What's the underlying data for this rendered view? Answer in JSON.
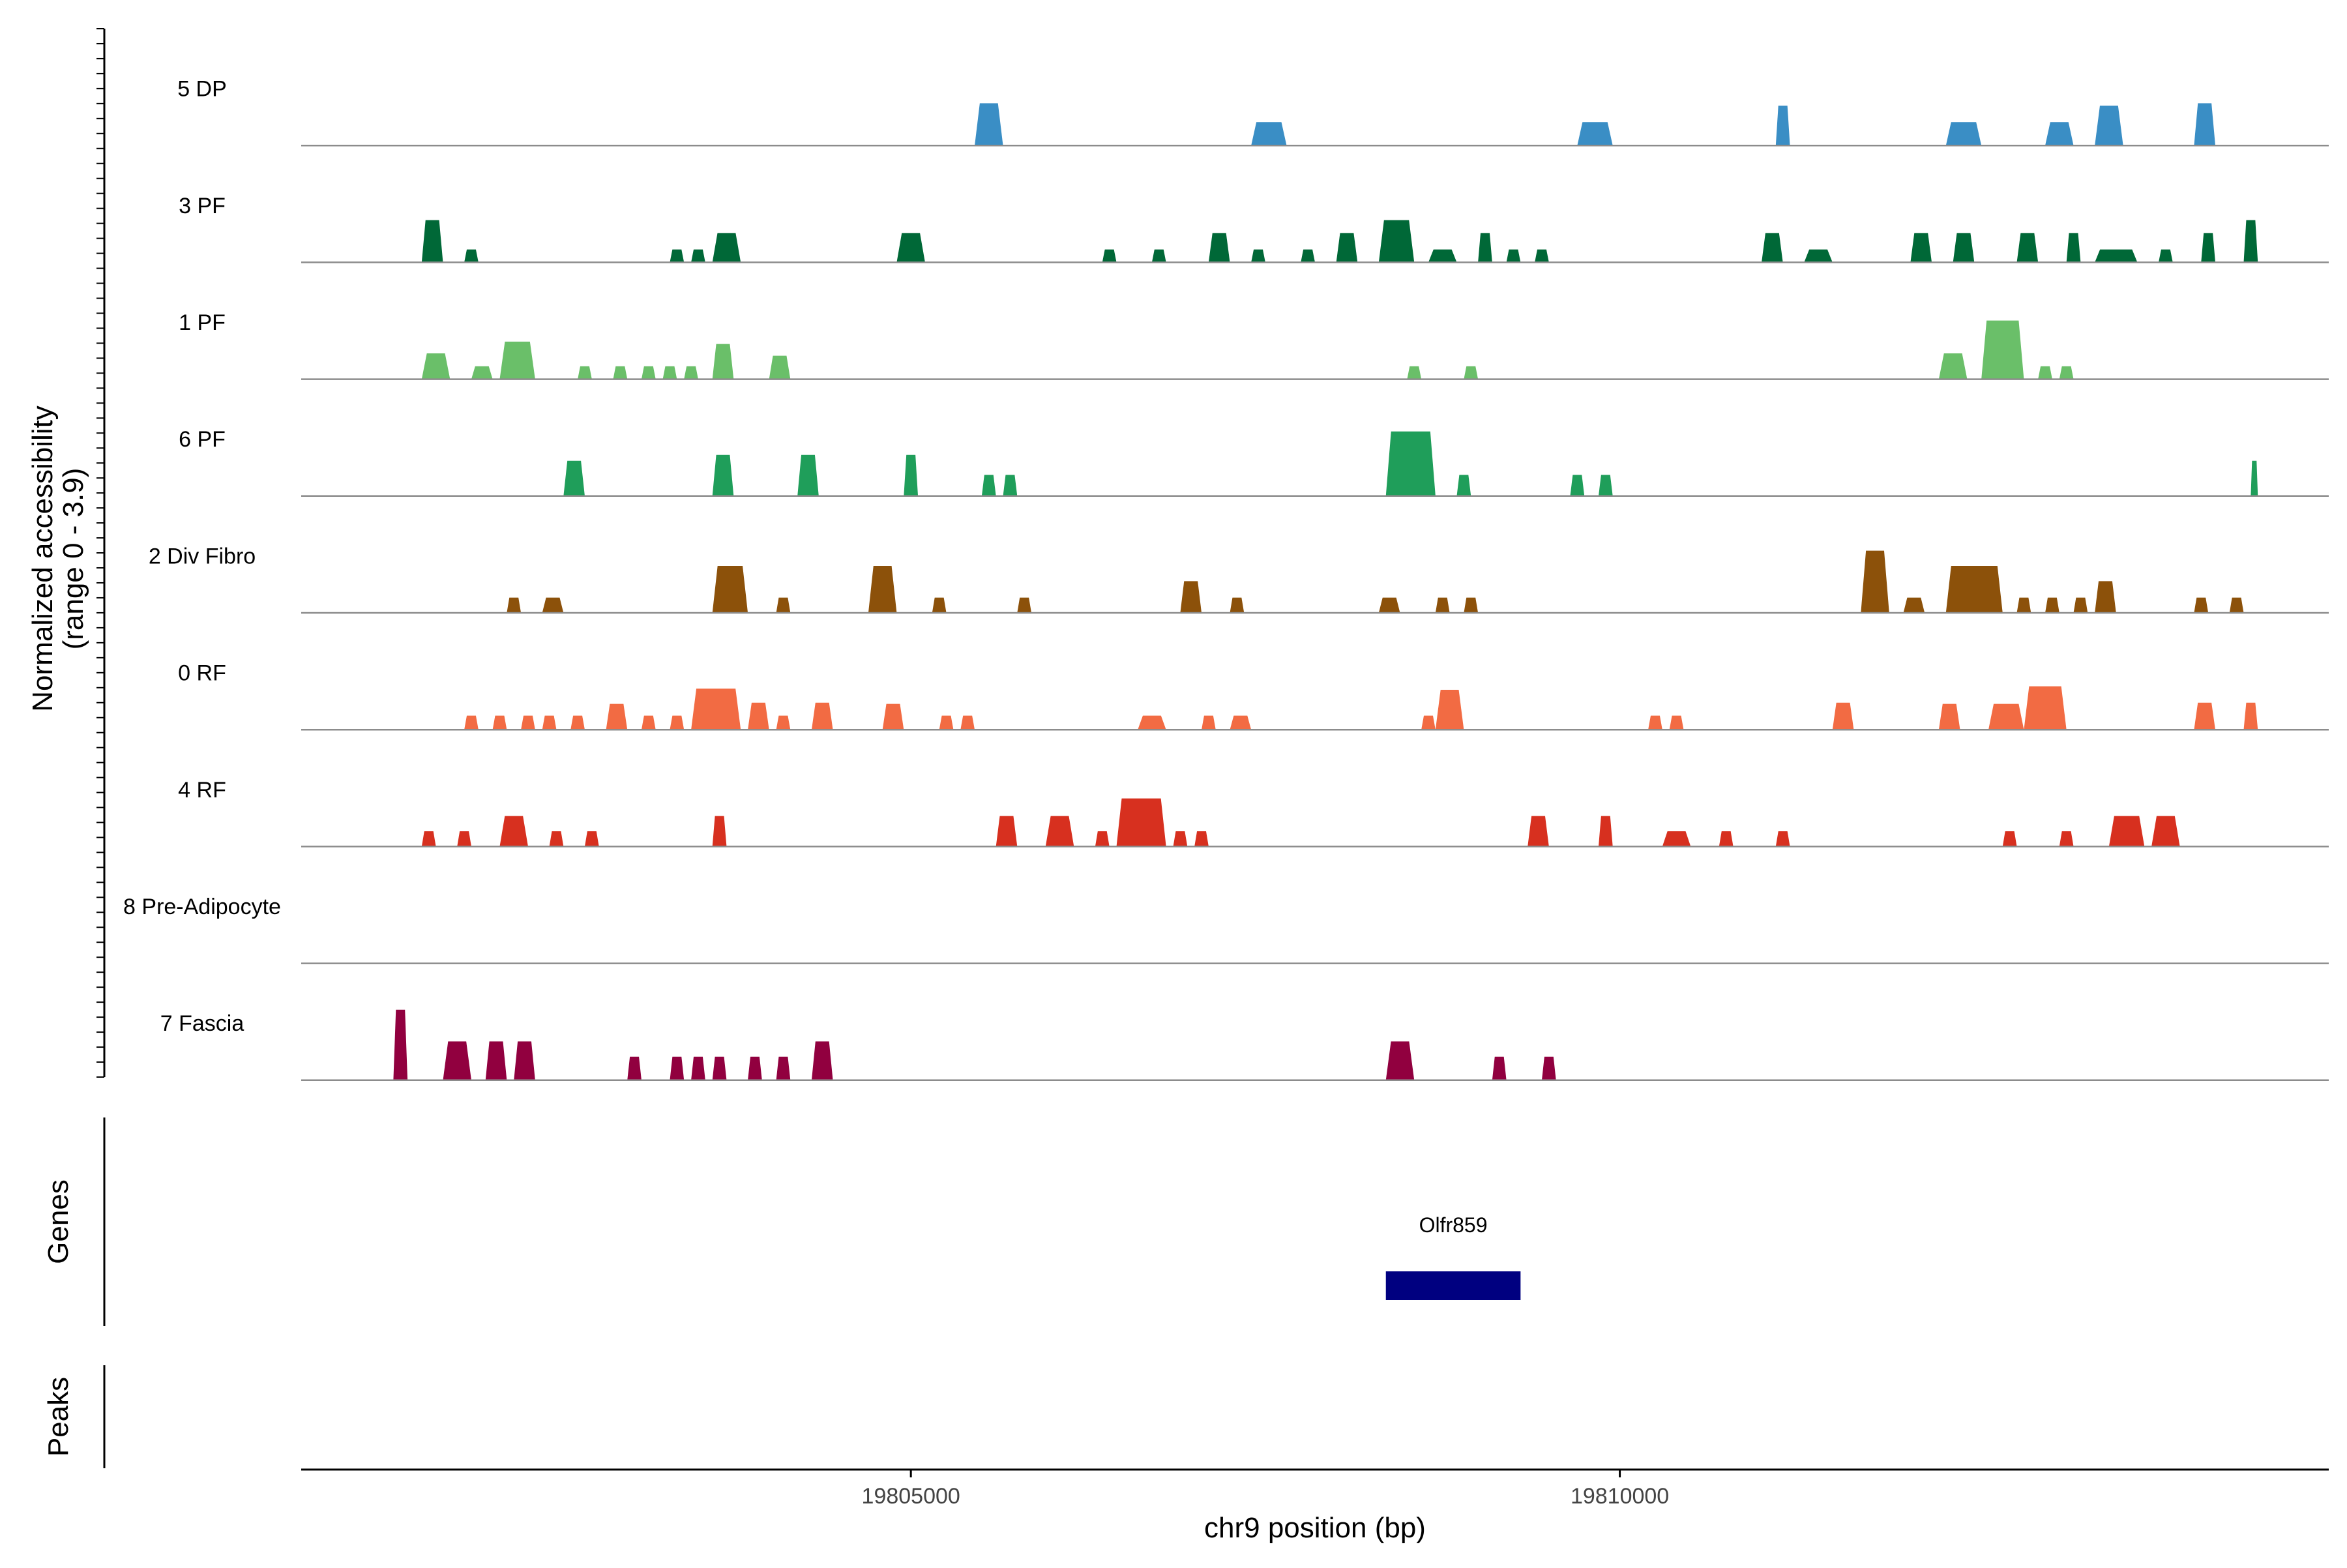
{
  "chart_data": {
    "type": "area",
    "title": "",
    "y_axis_label_line1": "Normalized accessibility",
    "y_axis_label_line2": "(range 0 - 3.9)",
    "ylim": [
      0,
      3.9
    ],
    "x_axis_label": "chr9 position (bp)",
    "xlim": [
      19800700,
      19815000
    ],
    "x_ticks": [
      {
        "value": 19805000,
        "label": "19805000"
      },
      {
        "value": 19810000,
        "label": "19810000"
      }
    ],
    "tracks": [
      {
        "name": "5 DP",
        "color": "#3A8EC5",
        "peaks": [
          [
            19805450,
            19805650,
            3.6
          ],
          [
            19807400,
            19807650,
            2.0
          ],
          [
            19809700,
            19809950,
            2.0
          ],
          [
            19811100,
            19811200,
            3.4
          ],
          [
            19812300,
            19812550,
            2.0
          ],
          [
            19813000,
            19813200,
            2.0
          ],
          [
            19813350,
            19813550,
            3.4
          ],
          [
            19814050,
            19814200,
            3.6
          ]
        ]
      },
      {
        "name": "3 PF",
        "color": "#006837",
        "peaks": [
          [
            19801550,
            19801700,
            3.6
          ],
          [
            19801850,
            19801950,
            1.1
          ],
          [
            19803300,
            19803400,
            1.1
          ],
          [
            19803450,
            19803550,
            1.1
          ],
          [
            19803600,
            19803800,
            2.5
          ],
          [
            19804900,
            19805100,
            2.5
          ],
          [
            19806350,
            19806450,
            1.1
          ],
          [
            19806700,
            19806800,
            1.1
          ],
          [
            19807100,
            19807250,
            2.5
          ],
          [
            19807400,
            19807500,
            1.1
          ],
          [
            19807750,
            19807850,
            1.1
          ],
          [
            19808000,
            19808150,
            2.5
          ],
          [
            19808300,
            19808550,
            3.6
          ],
          [
            19808650,
            19808850,
            1.1
          ],
          [
            19809000,
            19809100,
            2.5
          ],
          [
            19809200,
            19809300,
            1.1
          ],
          [
            19809400,
            19809500,
            1.1
          ],
          [
            19811000,
            19811150,
            2.5
          ],
          [
            19811300,
            19811500,
            1.1
          ],
          [
            19812050,
            19812200,
            2.5
          ],
          [
            19812350,
            19812500,
            2.5
          ],
          [
            19812800,
            19812950,
            2.5
          ],
          [
            19813150,
            19813250,
            2.5
          ],
          [
            19813350,
            19813650,
            1.1
          ],
          [
            19813800,
            19813900,
            1.1
          ],
          [
            19814100,
            19814200,
            2.5
          ],
          [
            19814400,
            19814500,
            3.6
          ]
        ]
      },
      {
        "name": "1 PF",
        "color": "#6ABF69",
        "peaks": [
          [
            19801550,
            19801750,
            2.2
          ],
          [
            19801900,
            19802050,
            1.1
          ],
          [
            19802100,
            19802350,
            3.2
          ],
          [
            19802650,
            19802750,
            1.1
          ],
          [
            19802900,
            19803000,
            1.1
          ],
          [
            19803100,
            19803200,
            1.1
          ],
          [
            19803250,
            19803350,
            1.1
          ],
          [
            19803400,
            19803500,
            1.1
          ],
          [
            19803600,
            19803750,
            3.0
          ],
          [
            19804000,
            19804150,
            2.0
          ],
          [
            19808500,
            19808600,
            1.1
          ],
          [
            19808900,
            19809000,
            1.1
          ],
          [
            19812250,
            19812450,
            2.2
          ],
          [
            19812550,
            19812850,
            5.0
          ],
          [
            19812950,
            19813050,
            1.1
          ],
          [
            19813100,
            19813200,
            1.1
          ]
        ]
      },
      {
        "name": "6 PF",
        "color": "#1F9E5A",
        "peaks": [
          [
            19802550,
            19802700,
            3.0
          ],
          [
            19803600,
            19803750,
            3.5
          ],
          [
            19804200,
            19804350,
            3.5
          ],
          [
            19804950,
            19805050,
            3.5
          ],
          [
            19805500,
            19805600,
            1.8
          ],
          [
            19805650,
            19805750,
            1.8
          ],
          [
            19808350,
            19808700,
            5.5
          ],
          [
            19808850,
            19808950,
            1.8
          ],
          [
            19809650,
            19809750,
            1.8
          ],
          [
            19809850,
            19809950,
            1.8
          ],
          [
            19814450,
            19814500,
            3.0
          ]
        ]
      },
      {
        "name": "2 Div Fibro",
        "color": "#8C510A",
        "peaks": [
          [
            19802150,
            19802250,
            1.3
          ],
          [
            19802400,
            19802550,
            1.3
          ],
          [
            19803600,
            19803850,
            4.0
          ],
          [
            19804050,
            19804150,
            1.3
          ],
          [
            19804700,
            19804900,
            4.0
          ],
          [
            19805150,
            19805250,
            1.3
          ],
          [
            19805750,
            19805850,
            1.3
          ],
          [
            19806900,
            19807050,
            2.7
          ],
          [
            19807250,
            19807350,
            1.3
          ],
          [
            19808300,
            19808450,
            1.3
          ],
          [
            19808700,
            19808800,
            1.3
          ],
          [
            19808900,
            19809000,
            1.3
          ],
          [
            19811700,
            19811900,
            5.3
          ],
          [
            19812000,
            19812150,
            1.3
          ],
          [
            19812300,
            19812700,
            4.0
          ],
          [
            19812800,
            19812900,
            1.3
          ],
          [
            19813000,
            19813100,
            1.3
          ],
          [
            19813200,
            19813300,
            1.3
          ],
          [
            19813350,
            19813500,
            2.7
          ],
          [
            19814050,
            19814150,
            1.3
          ],
          [
            19814300,
            19814400,
            1.3
          ]
        ]
      },
      {
        "name": "0 RF",
        "color": "#F26B43",
        "peaks": [
          [
            19801850,
            19801950,
            1.2
          ],
          [
            19802050,
            19802150,
            1.2
          ],
          [
            19802250,
            19802350,
            1.2
          ],
          [
            19802400,
            19802500,
            1.2
          ],
          [
            19802600,
            19802700,
            1.2
          ],
          [
            19802850,
            19803000,
            2.2
          ],
          [
            19803100,
            19803200,
            1.2
          ],
          [
            19803300,
            19803400,
            1.2
          ],
          [
            19803450,
            19803800,
            3.5
          ],
          [
            19803850,
            19804000,
            2.3
          ],
          [
            19804050,
            19804150,
            1.2
          ],
          [
            19804300,
            19804450,
            2.3
          ],
          [
            19804800,
            19804950,
            2.2
          ],
          [
            19805200,
            19805300,
            1.2
          ],
          [
            19805350,
            19805450,
            1.2
          ],
          [
            19806600,
            19806800,
            1.2
          ],
          [
            19807050,
            19807150,
            1.2
          ],
          [
            19807250,
            19807400,
            1.2
          ],
          [
            19808600,
            19808700,
            1.2
          ],
          [
            19808700,
            19808900,
            3.4
          ],
          [
            19810200,
            19810300,
            1.2
          ],
          [
            19810350,
            19810450,
            1.2
          ],
          [
            19811500,
            19811650,
            2.3
          ],
          [
            19812250,
            19812400,
            2.2
          ],
          [
            19812600,
            19812850,
            2.2
          ],
          [
            19812850,
            19813150,
            3.7
          ],
          [
            19814050,
            19814200,
            2.3
          ],
          [
            19814400,
            19814500,
            2.3
          ]
        ]
      },
      {
        "name": "4 RF",
        "color": "#D7301F",
        "peaks": [
          [
            19801550,
            19801650,
            1.3
          ],
          [
            19801800,
            19801900,
            1.3
          ],
          [
            19802100,
            19802300,
            2.6
          ],
          [
            19802450,
            19802550,
            1.3
          ],
          [
            19802700,
            19802800,
            1.3
          ],
          [
            19803600,
            19803700,
            2.6
          ],
          [
            19805600,
            19805750,
            2.6
          ],
          [
            19805950,
            19806150,
            2.6
          ],
          [
            19806300,
            19806400,
            1.3
          ],
          [
            19806450,
            19806800,
            4.1
          ],
          [
            19806850,
            19806950,
            1.3
          ],
          [
            19807000,
            19807100,
            1.3
          ],
          [
            19809350,
            19809500,
            2.6
          ],
          [
            19809850,
            19809950,
            2.6
          ],
          [
            19810300,
            19810500,
            1.3
          ],
          [
            19810700,
            19810800,
            1.3
          ],
          [
            19811100,
            19811200,
            1.3
          ],
          [
            19812700,
            19812800,
            1.3
          ],
          [
            19813100,
            19813200,
            1.3
          ],
          [
            19813450,
            19813700,
            2.6
          ],
          [
            19813750,
            19813950,
            2.6
          ]
        ]
      },
      {
        "name": "8 Pre-Adipocyte",
        "color": "#E31A1C",
        "peaks": []
      },
      {
        "name": "7 Fascia",
        "color": "#91003F",
        "peaks": [
          [
            19801350,
            19801450,
            6.0
          ],
          [
            19801700,
            19801900,
            3.3
          ],
          [
            19802000,
            19802150,
            3.3
          ],
          [
            19802200,
            19802350,
            3.3
          ],
          [
            19803000,
            19803100,
            2.0
          ],
          [
            19803300,
            19803400,
            2.0
          ],
          [
            19803450,
            19803550,
            2.0
          ],
          [
            19803600,
            19803700,
            2.0
          ],
          [
            19803850,
            19803950,
            2.0
          ],
          [
            19804050,
            19804150,
            2.0
          ],
          [
            19804300,
            19804450,
            3.3
          ],
          [
            19808350,
            19808550,
            3.3
          ],
          [
            19809100,
            19809200,
            2.0
          ],
          [
            19809450,
            19809550,
            2.0
          ]
        ]
      }
    ],
    "genes_panel_label": "Genes",
    "genes": [
      {
        "name": "Olfr859",
        "start": 19808350,
        "end": 19809300,
        "color": "#000080"
      }
    ],
    "peaks_panel_label": "Peaks"
  }
}
